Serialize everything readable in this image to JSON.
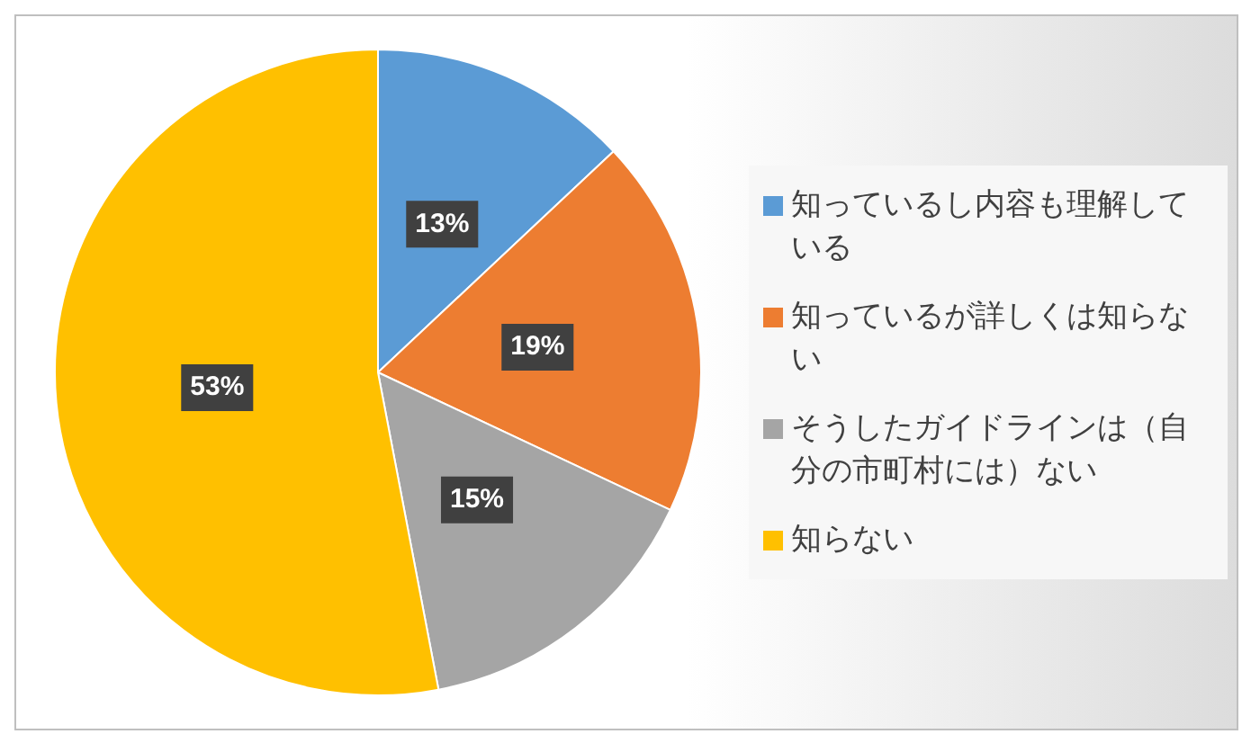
{
  "chart_data": {
    "type": "pie",
    "categories": [
      "知っているし内容も理解している",
      "知っているが詳しくは知らない",
      "そうしたガイドラインは（自分の市町村には）ない",
      "知らない"
    ],
    "values": [
      13,
      19,
      15,
      53
    ],
    "value_labels": [
      "13%",
      "19%",
      "15%",
      "53%"
    ],
    "colors": [
      "#5b9bd5",
      "#ed7d31",
      "#a5a5a5",
      "#ffc000"
    ],
    "legend": "right"
  }
}
